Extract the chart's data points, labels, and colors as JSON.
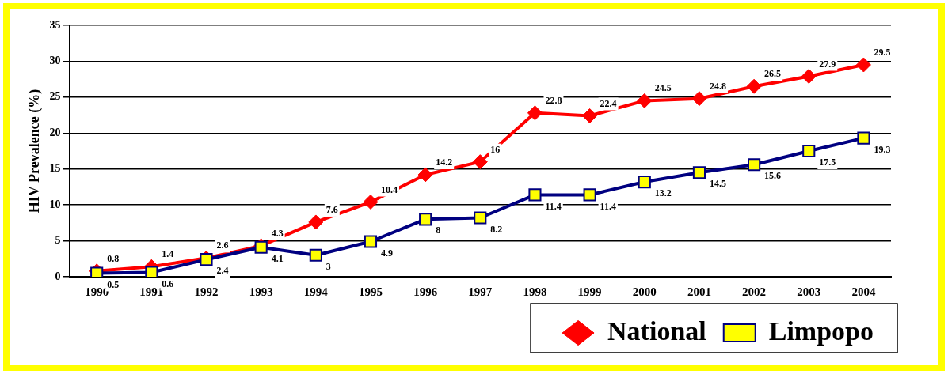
{
  "chart_data": {
    "type": "line",
    "ylabel": "HIV Prevalence (%)",
    "categories": [
      "1990",
      "1991",
      "1992",
      "1993",
      "1994",
      "1995",
      "1996",
      "1997",
      "1998",
      "1999",
      "2000",
      "2001",
      "2002",
      "2003",
      "2004"
    ],
    "series": [
      {
        "name": "National",
        "color": "#ff0000",
        "marker": "diamond",
        "values": [
          0.8,
          1.4,
          2.6,
          4.3,
          7.6,
          10.4,
          14.2,
          16,
          22.8,
          22.4,
          24.5,
          24.8,
          26.5,
          27.9,
          29.5
        ]
      },
      {
        "name": "Limpopo",
        "color": "#000080",
        "marker": "square",
        "values": [
          0.5,
          0.6,
          2.4,
          4.1,
          3,
          4.9,
          8,
          8.2,
          11.4,
          11.4,
          13.2,
          14.5,
          15.6,
          17.5,
          19.3
        ]
      }
    ],
    "ylim": [
      0,
      35
    ],
    "yticks": [
      0,
      5,
      10,
      15,
      20,
      25,
      30,
      35
    ],
    "grid": "y",
    "legend": "bottom right",
    "data_labels": true
  }
}
